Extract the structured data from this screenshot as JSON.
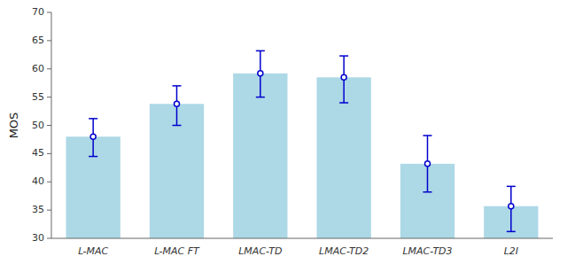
{
  "chart_data": {
    "type": "bar",
    "categories": [
      "L-MAC",
      "L-MAC FT",
      "LMAC-TD",
      "LMAC-TD2",
      "LMAC-TD3",
      "L2I"
    ],
    "values": [
      48.0,
      53.8,
      59.2,
      58.5,
      43.2,
      35.7
    ],
    "color": "#add8e6",
    "error_bars": {
      "lower": [
        3.5,
        3.8,
        4.2,
        4.5,
        5.0,
        4.5
      ],
      "upper": [
        3.2,
        3.2,
        4.0,
        3.8,
        5.0,
        3.5
      ],
      "color": "#0000cd"
    },
    "ylabel": "MOS",
    "ylim": [
      30,
      70
    ],
    "yticks": [
      30,
      35,
      40,
      45,
      50,
      55,
      60,
      65,
      70
    ],
    "grid": false
  }
}
